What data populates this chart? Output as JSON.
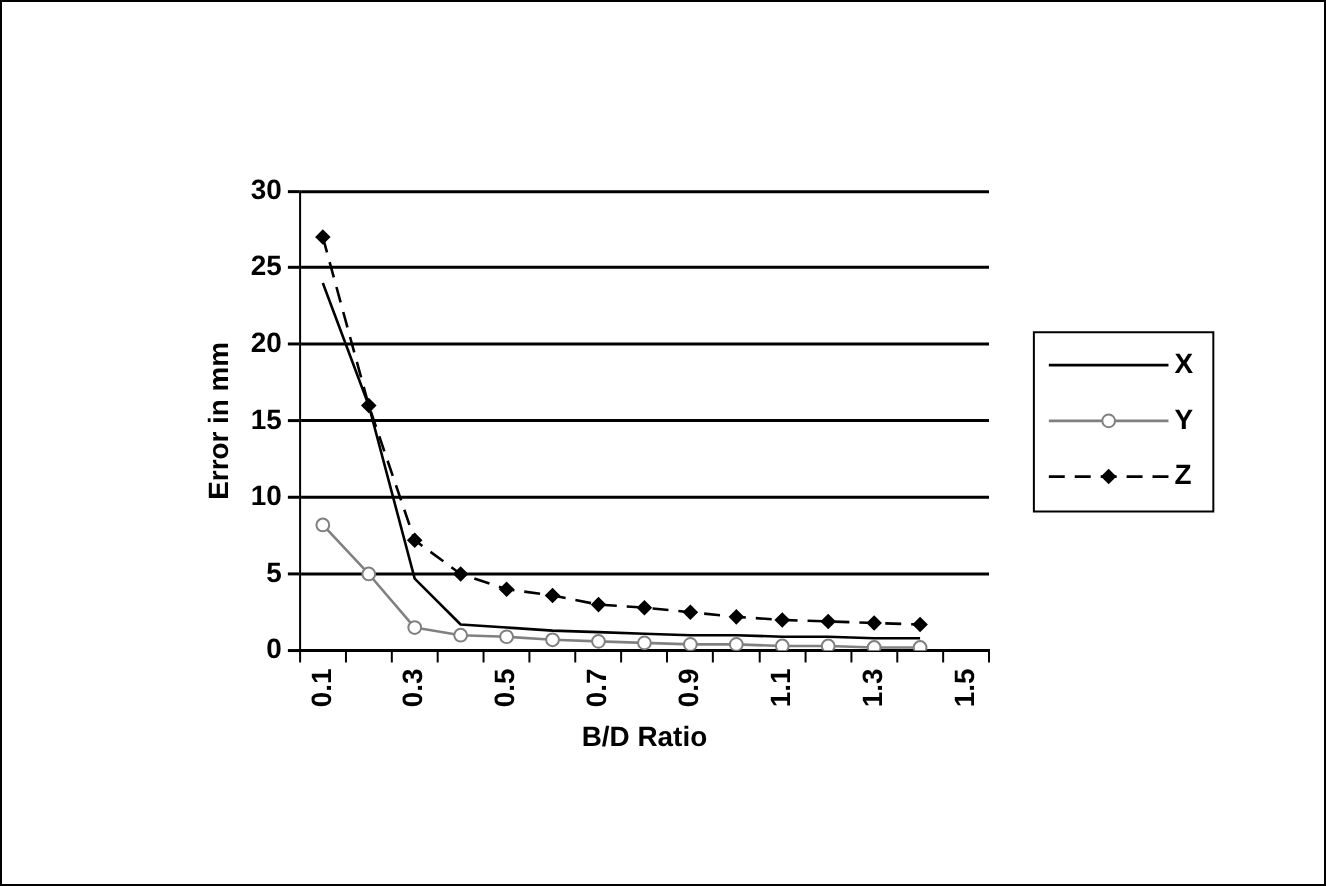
{
  "chart_data": {
    "type": "line",
    "xlabel": "B/D Ratio",
    "ylabel": "Error in mm",
    "categories": [
      "0.1",
      null,
      "0.3",
      null,
      "0.5",
      null,
      "0.7",
      null,
      "0.9",
      null,
      "1.1",
      null,
      "1.3",
      null,
      "1.5"
    ],
    "ylim": [
      0,
      30
    ],
    "yticks": [
      0,
      5,
      10,
      15,
      20,
      25,
      30
    ],
    "grid": "y",
    "legend": "right",
    "series": [
      {
        "name": "X",
        "color": "#000000",
        "marker": "none",
        "line_style": "solid",
        "values": [
          24,
          16,
          4.7,
          1.7,
          1.5,
          1.3,
          1.2,
          1.1,
          1,
          1,
          0.9,
          0.9,
          0.8,
          0.8,
          null
        ]
      },
      {
        "name": "Y",
        "color": "#808080",
        "marker": "circle",
        "line_style": "solid",
        "values": [
          8.2,
          5,
          1.5,
          1,
          0.9,
          0.7,
          0.6,
          0.5,
          0.4,
          0.4,
          0.3,
          0.3,
          0.2,
          0.2,
          null
        ]
      },
      {
        "name": "Z",
        "color": "#000000",
        "marker": "diamond",
        "line_style": "dashed",
        "values": [
          27,
          16,
          7.2,
          5,
          4,
          3.6,
          3,
          2.8,
          2.5,
          2.2,
          2,
          1.9,
          1.8,
          1.7,
          null
        ]
      }
    ]
  }
}
